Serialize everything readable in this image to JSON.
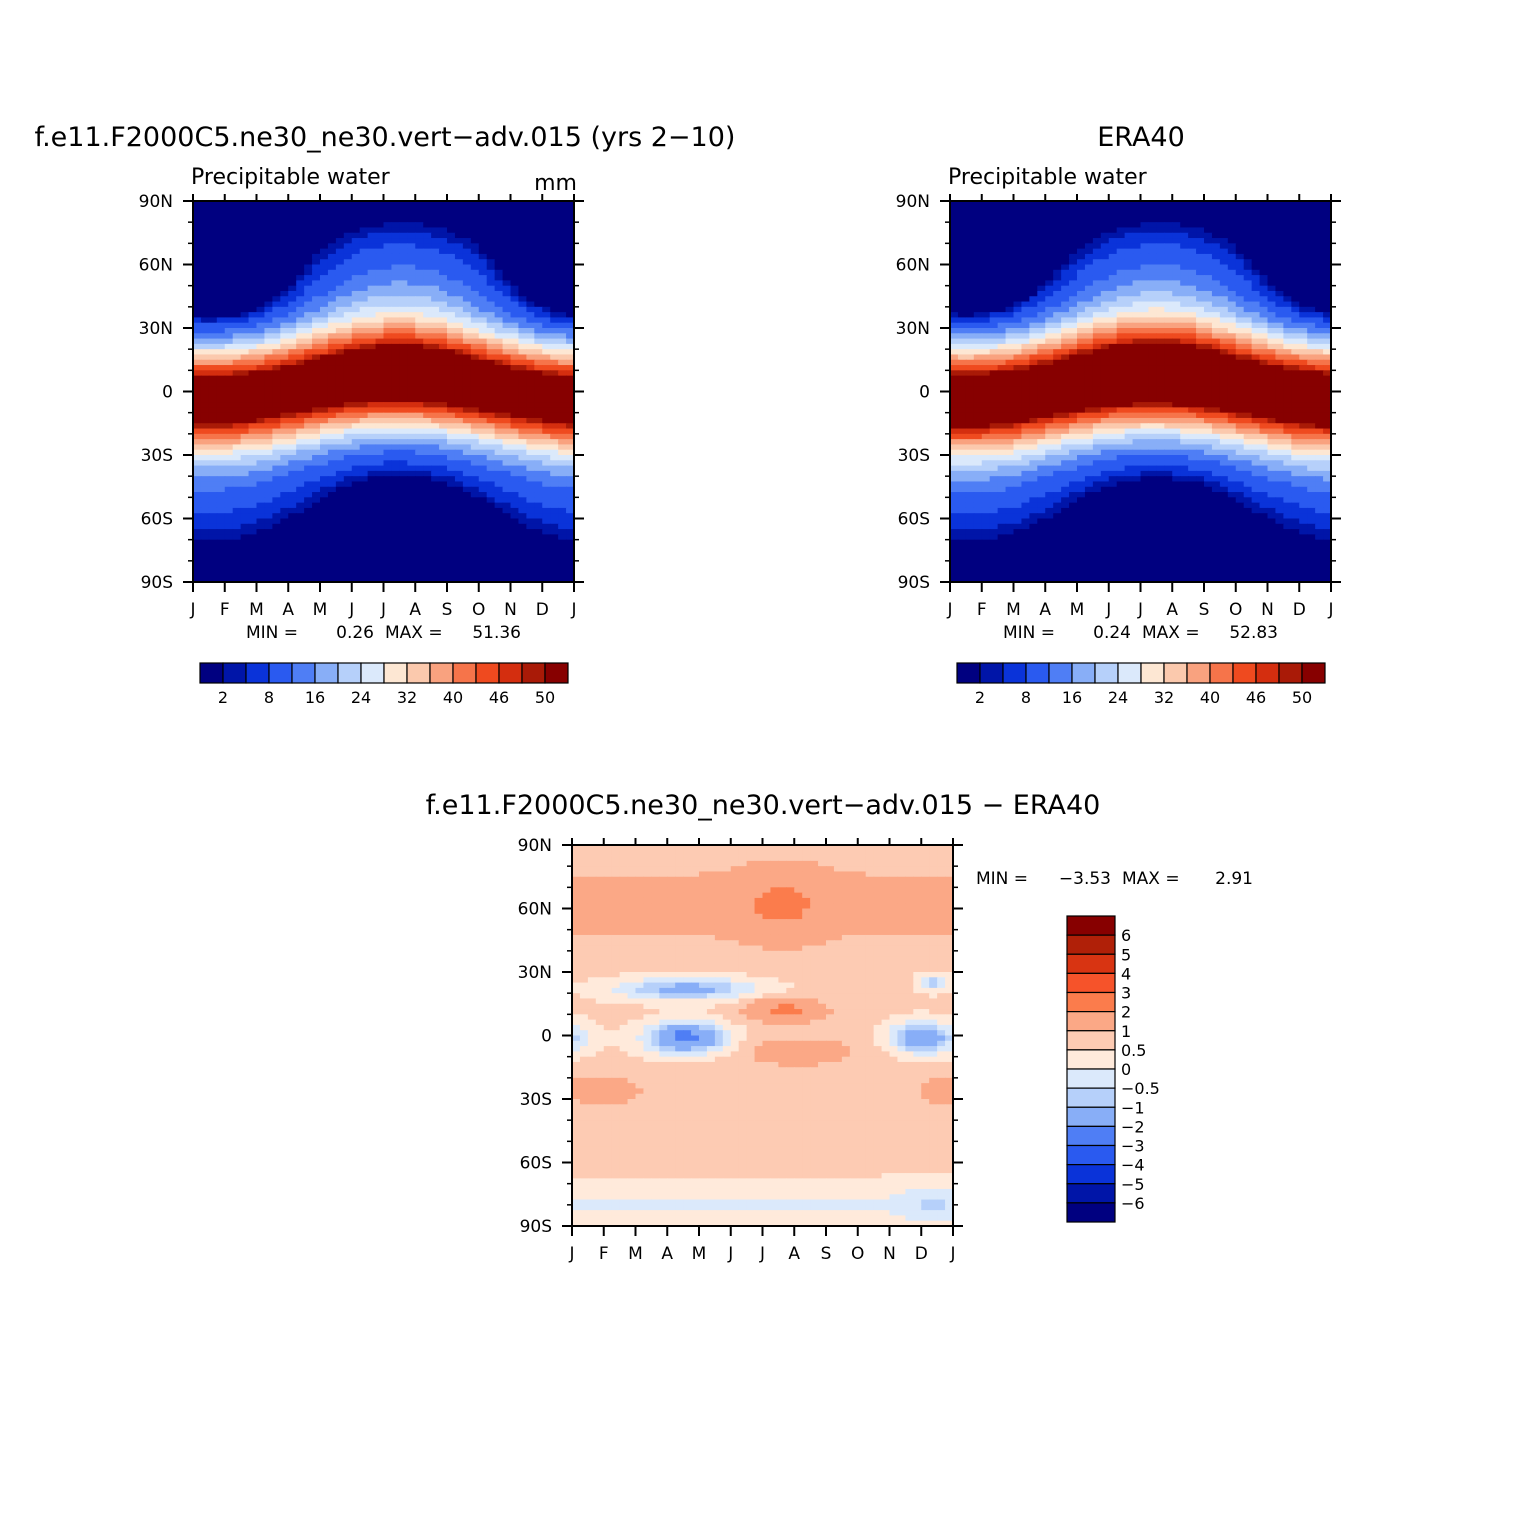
{
  "figure": {
    "panels": [
      {
        "title": "f.e11.F2000C5.ne30_ne30.vert−adv.015 (yrs 2−10)",
        "variable_label": "Precipitable water",
        "units_label": "mm",
        "stats": {
          "min_label": "MIN =",
          "min": "0.26",
          "max_label": "MAX =",
          "max": "51.36"
        }
      },
      {
        "title": "ERA40",
        "variable_label": "Precipitable water",
        "units_label": "",
        "stats": {
          "min_label": "MIN =",
          "min": "0.24",
          "max_label": "MAX =",
          "max": "52.83"
        }
      },
      {
        "title": "f.e11.F2000C5.ne30_ne30.vert−adv.015 − ERA40",
        "variable_label": "",
        "units_label": "",
        "stats": {
          "min_label": "MIN =",
          "min": "−3.53",
          "max_label": "MAX =",
          "max": "2.91"
        }
      }
    ],
    "month_ticks": [
      "J",
      "F",
      "M",
      "A",
      "M",
      "J",
      "J",
      "A",
      "S",
      "O",
      "N",
      "D",
      "J"
    ],
    "lat_ticks": [
      "90N",
      "60N",
      "30N",
      "0",
      "30S",
      "60S",
      "90S"
    ],
    "colorbar_abs": {
      "labels": [
        "2",
        "8",
        "16",
        "24",
        "32",
        "40",
        "46",
        "50"
      ],
      "colors": [
        "#000080",
        "#0015a8",
        "#0a33d9",
        "#2a5af0",
        "#4f7ef5",
        "#88aef7",
        "#b6d0fa",
        "#dbe9fb",
        "#fde7d3",
        "#fbc9ad",
        "#f9a27f",
        "#f6744a",
        "#ef4a1f",
        "#d42e0f",
        "#a91a07",
        "#870000"
      ]
    },
    "colorbar_diff": {
      "labels": [
        "6",
        "5",
        "4",
        "3",
        "2",
        "1",
        "0.5",
        "0",
        "−0.5",
        "−1",
        "−2",
        "−3",
        "−4",
        "−5",
        "−6"
      ],
      "colors": [
        "#870000",
        "#b02008",
        "#d83412",
        "#f6532a",
        "#fb7c4c",
        "#fba886",
        "#fdcbb3",
        "#ffeadb",
        "#dbe9fb",
        "#b6d0fa",
        "#88aef7",
        "#4f7ef5",
        "#2a5af0",
        "#0a33d9",
        "#0015a8",
        "#000080"
      ]
    }
  },
  "chart_data": [
    {
      "type": "heatmap",
      "title": "f.e11.F2000C5.ne30_ne30.vert−adv.015 (yrs 2−10)",
      "subtitle": "Precipitable water",
      "units": "mm",
      "x_ticks": [
        "J",
        "F",
        "M",
        "A",
        "M",
        "J",
        "J",
        "A",
        "S",
        "O",
        "N",
        "D",
        "J"
      ],
      "y_ticks": [
        "90N",
        "60N",
        "30N",
        "0",
        "30S",
        "60S",
        "90S"
      ],
      "ylim": [
        -90,
        90
      ],
      "contour_levels": [
        1,
        2,
        4,
        8,
        12,
        16,
        20,
        24,
        28,
        32,
        36,
        40,
        44,
        46,
        48,
        50
      ],
      "min": 0.26,
      "max": 51.36
    },
    {
      "type": "heatmap",
      "title": "ERA40",
      "subtitle": "Precipitable water",
      "x_ticks": [
        "J",
        "F",
        "M",
        "A",
        "M",
        "J",
        "J",
        "A",
        "S",
        "O",
        "N",
        "D",
        "J"
      ],
      "y_ticks": [
        "90N",
        "60N",
        "30N",
        "0",
        "30S",
        "60S",
        "90S"
      ],
      "ylim": [
        -90,
        90
      ],
      "contour_levels": [
        1,
        2,
        4,
        8,
        12,
        16,
        20,
        24,
        28,
        32,
        36,
        40,
        44,
        46,
        48,
        50
      ],
      "min": 0.24,
      "max": 52.83
    },
    {
      "type": "heatmap",
      "title": "f.e11.F2000C5.ne30_ne30.vert−adv.015 − ERA40",
      "x_ticks": [
        "J",
        "F",
        "M",
        "A",
        "M",
        "J",
        "J",
        "A",
        "S",
        "O",
        "N",
        "D",
        "J"
      ],
      "y_ticks": [
        "90N",
        "60N",
        "30N",
        "0",
        "30S",
        "60S",
        "90S"
      ],
      "ylim": [
        -90,
        90
      ],
      "contour_levels": [
        -6,
        -5,
        -4,
        -3,
        -2,
        -1,
        -0.5,
        0,
        0.5,
        1,
        2,
        3,
        4,
        5,
        6
      ],
      "min": -3.53,
      "max": 2.91
    }
  ]
}
